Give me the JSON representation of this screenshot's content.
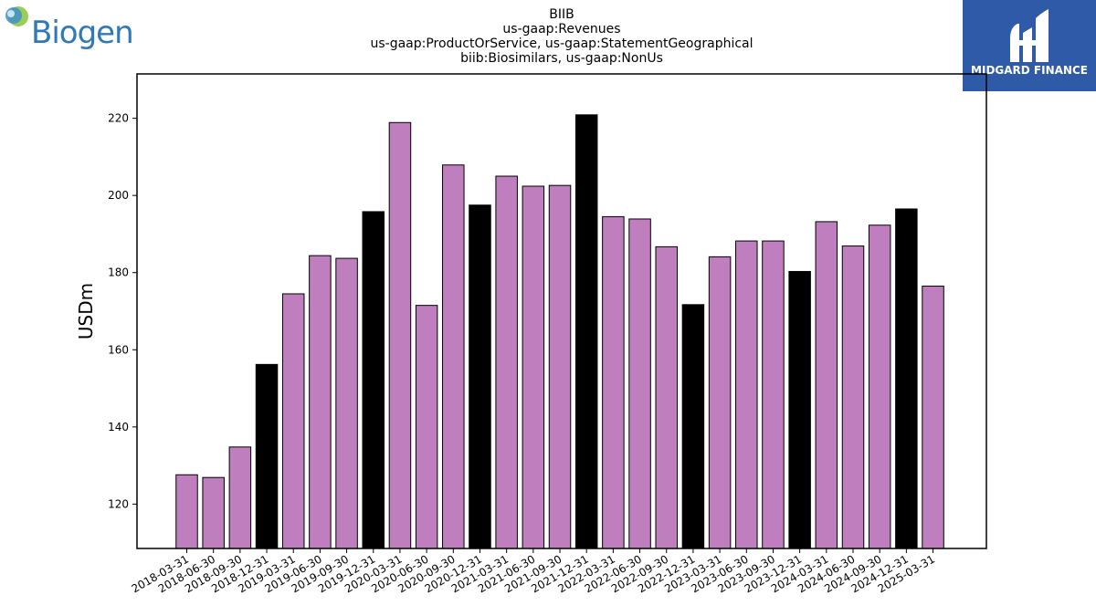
{
  "brand_left": {
    "name": "Biogen",
    "color": "#2f79b9"
  },
  "brand_right": {
    "name": "MIDGARD FINANCE",
    "background": "#2f5aa8"
  },
  "chart_data": {
    "type": "bar",
    "title_lines": [
      "BIIB",
      "us-gaap:Revenues",
      "us-gaap:ProductOrService, us-gaap:StatementGeographical",
      "biib:Biosimilars, us-gaap:NonUs"
    ],
    "xlabel": "",
    "ylabel": "USDm",
    "ylim": [
      108.5,
      231.5
    ],
    "yticks": [
      120,
      140,
      160,
      180,
      200,
      220
    ],
    "grid": false,
    "legend": "none",
    "colors": {
      "regular": "#bf7fbf",
      "highlight": "#000000",
      "edge": "#000000"
    },
    "categories": [
      "2018-03-31",
      "2018-06-30",
      "2018-09-30",
      "2018-12-31",
      "2019-03-31",
      "2019-06-30",
      "2019-09-30",
      "2019-12-31",
      "2020-03-31",
      "2020-06-30",
      "2020-09-30",
      "2020-12-31",
      "2021-03-31",
      "2021-06-30",
      "2021-09-30",
      "2021-12-31",
      "2022-03-31",
      "2022-06-30",
      "2022-09-30",
      "2022-12-31",
      "2023-03-31",
      "2023-06-30",
      "2023-09-30",
      "2023-12-31",
      "2024-03-31",
      "2024-06-30",
      "2024-09-30",
      "2024-12-31",
      "2025-03-31"
    ],
    "values": [
      127.6,
      126.9,
      134.8,
      156.2,
      174.5,
      184.4,
      183.7,
      195.8,
      218.9,
      171.5,
      207.9,
      197.5,
      205.0,
      202.4,
      202.6,
      220.9,
      194.5,
      193.9,
      186.7,
      171.7,
      184.1,
      188.2,
      188.2,
      180.3,
      193.2,
      186.9,
      192.3,
      196.5,
      176.5
    ],
    "highlighted": [
      false,
      false,
      false,
      true,
      false,
      false,
      false,
      true,
      false,
      false,
      false,
      true,
      false,
      false,
      false,
      true,
      false,
      false,
      false,
      true,
      false,
      false,
      false,
      true,
      false,
      false,
      false,
      true,
      false
    ]
  }
}
